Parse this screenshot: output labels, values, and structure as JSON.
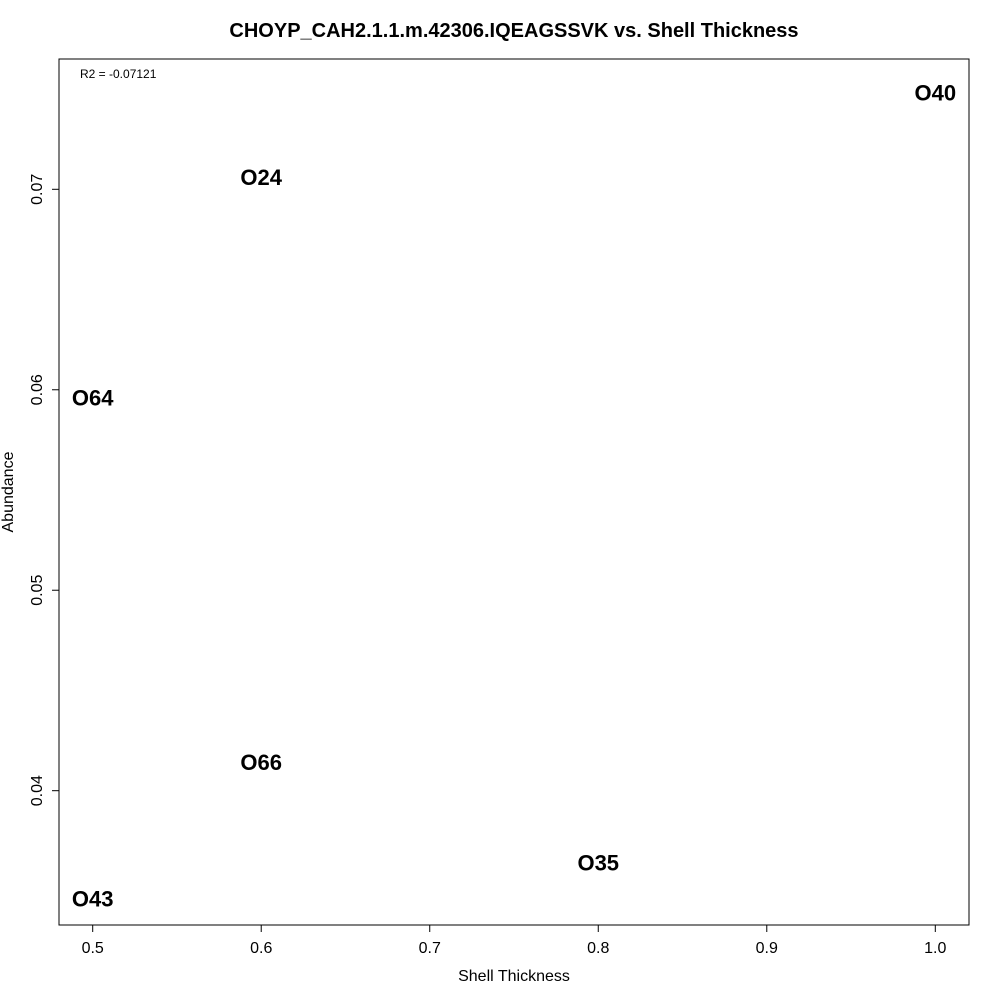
{
  "chart_data": {
    "type": "scatter",
    "title": "CHOYP_CAH2.1.1.m.42306.IQEAGSSVK vs. Shell Thickness",
    "xlabel": "Shell Thickness",
    "ylabel": "Abundance",
    "annotation": "R2 = -0.07121",
    "xlim": [
      0.48,
      1.02
    ],
    "ylim": [
      0.0333,
      0.0765
    ],
    "xticks": [
      0.5,
      0.6,
      0.7,
      0.8,
      0.9,
      1.0
    ],
    "xtick_labels": [
      "0.5",
      "0.6",
      "0.7",
      "0.8",
      "0.9",
      "1.0"
    ],
    "yticks": [
      0.04,
      0.05,
      0.06,
      0.07
    ],
    "ytick_labels": [
      "0.04",
      "0.05",
      "0.06",
      "0.07"
    ],
    "grid": false,
    "marker": "text-label",
    "points": [
      {
        "label": "O40",
        "x": 1.0,
        "y": 0.0748
      },
      {
        "label": "O24",
        "x": 0.6,
        "y": 0.0706
      },
      {
        "label": "O64",
        "x": 0.5,
        "y": 0.0596
      },
      {
        "label": "O66",
        "x": 0.6,
        "y": 0.0414
      },
      {
        "label": "O35",
        "x": 0.8,
        "y": 0.0364
      },
      {
        "label": "O43",
        "x": 0.5,
        "y": 0.0346
      }
    ]
  }
}
